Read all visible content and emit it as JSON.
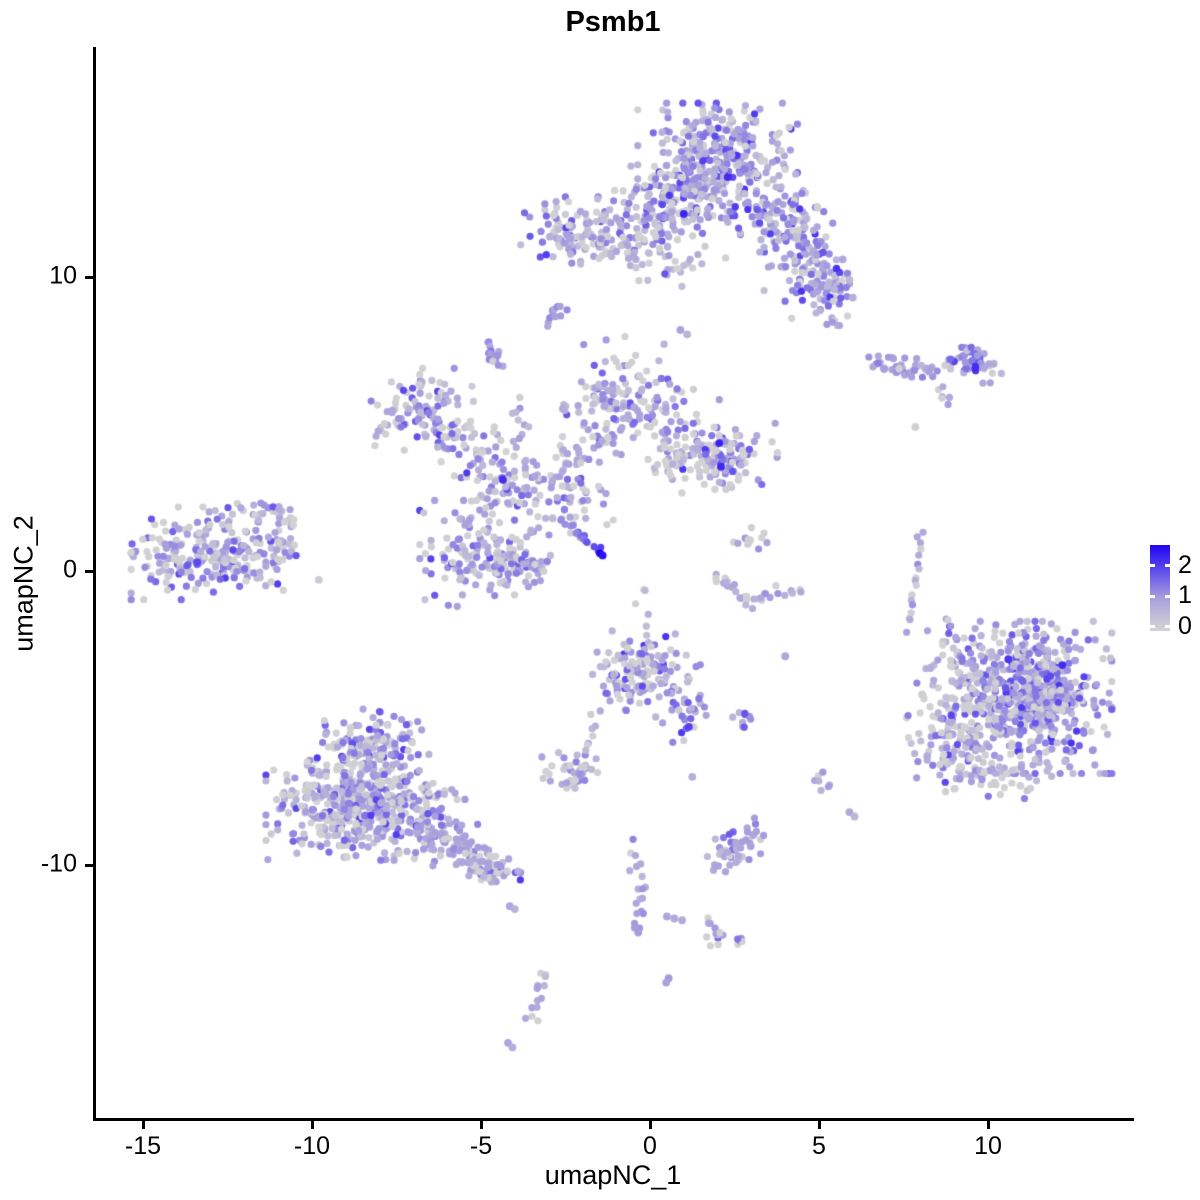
{
  "title": "Psmb1",
  "axes": {
    "x": {
      "label": "umapNC_1",
      "ticks": [
        -15,
        -10,
        -5,
        0,
        5,
        10
      ]
    },
    "y": {
      "label": "umapNC_2",
      "ticks": [
        10,
        0,
        -10
      ]
    }
  },
  "legend": {
    "tick_values": [
      2,
      1,
      0
    ],
    "color_low": "#D3D3D3",
    "color_high": "#2204F2"
  },
  "chart_data": {
    "type": "scatter",
    "title": "Psmb1",
    "xlabel": "umapNC_1",
    "ylabel": "umapNC_2",
    "x_ticks": [
      -15,
      -10,
      -5,
      0,
      5,
      10
    ],
    "y_ticks": [
      10,
      0,
      -10
    ],
    "xlim": [
      -16.4,
      14.2
    ],
    "ylim": [
      -18.6,
      17.8
    ],
    "grid": false,
    "legend_position": "right",
    "point_radius": 3.6,
    "value_max": 2.6,
    "color_stops": [
      [
        0,
        "#D3D3D3"
      ],
      [
        0.38,
        "#A89FDD"
      ],
      [
        0.77,
        "#5340EE"
      ],
      [
        1,
        "#2204F2"
      ]
    ],
    "clusters": [
      {
        "id": "top-core",
        "cx": 2.0,
        "cy": 14.0,
        "sx": 1.05,
        "sy": 0.85,
        "n": 320,
        "mean": 1.0,
        "sd": 0.5,
        "gray": 0.12
      },
      {
        "id": "top-lower",
        "cx": 1.0,
        "cy": 12.7,
        "sx": 1.15,
        "sy": 0.5,
        "n": 120,
        "mean": 0.95,
        "sd": 0.5,
        "gray": 0.15
      },
      {
        "id": "top-left-lobe",
        "cx": 0.15,
        "cy": 11.5,
        "sx": 0.7,
        "sy": 0.55,
        "n": 85,
        "mean": 0.9,
        "sd": 0.5,
        "gray": 0.18
      },
      {
        "id": "top-left-island",
        "cx": -2.4,
        "cy": 11.6,
        "sx": 0.68,
        "sy": 0.5,
        "n": 90,
        "mean": 0.9,
        "sd": 0.5,
        "gray": 0.18
      },
      {
        "id": "top-bridge",
        "cx": -1.2,
        "cy": 10.9,
        "sx": 0.45,
        "sy": 0.4,
        "n": 22,
        "mean": 0.75,
        "sd": 0.45,
        "gray": 0.2
      },
      {
        "id": "arm-1",
        "cx": 3.6,
        "cy": 12.2,
        "sx": 0.6,
        "sy": 0.6,
        "n": 85,
        "mean": 1.0,
        "sd": 0.5,
        "gray": 0.1
      },
      {
        "id": "arm-2",
        "cx": 4.5,
        "cy": 11.0,
        "sx": 0.5,
        "sy": 0.65,
        "n": 70,
        "mean": 0.95,
        "sd": 0.5,
        "gray": 0.12
      },
      {
        "id": "arm-3",
        "cx": 5.0,
        "cy": 9.8,
        "sx": 0.45,
        "sy": 0.55,
        "n": 55,
        "mean": 1.0,
        "sd": 0.5,
        "gray": 0.1
      },
      {
        "id": "arm-4",
        "cx": 5.55,
        "cy": 8.95,
        "sx": 0.3,
        "sy": 0.45,
        "n": 25,
        "mean": 0.95,
        "sd": 0.5,
        "gray": 0.1
      },
      {
        "id": "top-sparse-below",
        "cx": 0.6,
        "cy": 10.3,
        "sx": 0.9,
        "sy": 0.5,
        "n": 24,
        "mean": 0.75,
        "sd": 0.45,
        "gray": 0.25
      },
      {
        "id": "upper-mid-sparse",
        "cx": -0.5,
        "cy": 7.5,
        "sx": 0.75,
        "sy": 0.5,
        "n": 12,
        "mean": 0.8,
        "sd": 0.45,
        "gray": 0.2
      },
      {
        "id": "mid-left",
        "cx": -6.8,
        "cy": 5.5,
        "sx": 0.7,
        "sy": 0.62,
        "n": 100,
        "mean": 0.95,
        "sd": 0.5,
        "gray": 0.18
      },
      {
        "id": "mid-left-elbow",
        "cx": -5.4,
        "cy": 4.3,
        "sx": 0.55,
        "sy": 0.5,
        "n": 45,
        "mean": 0.85,
        "sd": 0.5,
        "gray": 0.25
      },
      {
        "id": "mid-upper",
        "cx": -0.9,
        "cy": 5.6,
        "sx": 0.75,
        "sy": 0.62,
        "n": 110,
        "mean": 0.9,
        "sd": 0.5,
        "gray": 0.22
      },
      {
        "id": "mid-upper-right-sparse",
        "cx": 0.7,
        "cy": 5.2,
        "sx": 0.6,
        "sy": 0.7,
        "n": 30,
        "mean": 0.75,
        "sd": 0.45,
        "gray": 0.3
      },
      {
        "id": "mid-right-lobe",
        "cx": 2.1,
        "cy": 3.9,
        "sx": 0.75,
        "sy": 0.5,
        "n": 120,
        "mean": 0.95,
        "sd": 0.5,
        "gray": 0.25
      },
      {
        "id": "mid-right-gray-band",
        "cx": 0.7,
        "cy": 3.6,
        "sx": 0.6,
        "sy": 0.42,
        "n": 30,
        "mean": 0.55,
        "sd": 0.4,
        "gray": 0.4
      },
      {
        "id": "center-scatter",
        "cx": -2.2,
        "cy": 2.5,
        "sx": 0.7,
        "sy": 0.6,
        "n": 45,
        "mean": 0.75,
        "sd": 0.45,
        "gray": 0.3
      },
      {
        "id": "ring-top",
        "cx": -4.4,
        "cy": 2.95,
        "sx": 0.5,
        "sy": 0.45,
        "n": 55,
        "mean": 0.95,
        "sd": 0.5,
        "gray": 0.15
      },
      {
        "id": "ring-main",
        "cx": -4.9,
        "cy": 0.6,
        "sx": 0.85,
        "sy": 0.8,
        "n": 150,
        "mean": 0.85,
        "sd": 0.5,
        "gray": 0.25
      },
      {
        "id": "ring-right",
        "cx": -3.6,
        "cy": 0.3,
        "sx": 0.4,
        "sy": 0.5,
        "n": 35,
        "mean": 0.8,
        "sd": 0.45,
        "gray": 0.25
      },
      {
        "id": "far-left-main",
        "cx": -13.1,
        "cy": 0.6,
        "sx": 1.0,
        "sy": 0.7,
        "n": 230,
        "mean": 0.9,
        "sd": 0.5,
        "gray": 0.22
      },
      {
        "id": "far-left-arm",
        "cx": -11.4,
        "cy": 1.85,
        "sx": 0.55,
        "sy": 0.33,
        "n": 30,
        "mean": 0.85,
        "sd": 0.45,
        "gray": 0.2
      },
      {
        "id": "far-left-edge",
        "cx": -10.75,
        "cy": 0.9,
        "sx": 0.4,
        "sy": 0.5,
        "n": 22,
        "mean": 0.75,
        "sd": 0.45,
        "gray": 0.3
      },
      {
        "id": "arc-top",
        "cx": 2.9,
        "cy": 1.05,
        "sx": 0.3,
        "sy": 0.35,
        "n": 13,
        "mean": 0.75,
        "sd": 0.45,
        "gray": 0.3
      },
      {
        "id": "bottom-center",
        "cx": -0.2,
        "cy": -3.5,
        "sx": 0.75,
        "sy": 0.65,
        "n": 150,
        "mean": 1.0,
        "sd": 0.5,
        "gray": 0.18
      },
      {
        "id": "bottom-center-neck",
        "cx": 1.05,
        "cy": -4.9,
        "sx": 0.3,
        "sy": 0.5,
        "n": 25,
        "mean": 0.95,
        "sd": 0.5,
        "gray": 0.15
      },
      {
        "id": "tiny-right-of-neck",
        "cx": 2.75,
        "cy": -5.05,
        "sx": 0.18,
        "sy": 0.13,
        "n": 9,
        "mean": 1.2,
        "sd": 0.5,
        "gray": 0.05
      },
      {
        "id": "right-big-core",
        "cx": 11.3,
        "cy": -4.3,
        "sx": 1.05,
        "sy": 1.15,
        "n": 580,
        "mean": 1.0,
        "sd": 0.5,
        "gray": 0.1
      },
      {
        "id": "right-big-left-fringe",
        "cx": 9.1,
        "cy": -5.3,
        "sx": 0.7,
        "sy": 1.05,
        "n": 140,
        "mean": 0.8,
        "sd": 0.5,
        "gray": 0.3
      },
      {
        "id": "right-big-topleft",
        "cx": 9.4,
        "cy": -2.7,
        "sx": 0.55,
        "sy": 0.6,
        "n": 45,
        "mean": 0.85,
        "sd": 0.5,
        "gray": 0.2
      },
      {
        "id": "right-big-bottom",
        "cx": 10.6,
        "cy": -6.95,
        "sx": 0.9,
        "sy": 0.35,
        "n": 50,
        "mean": 0.65,
        "sd": 0.45,
        "gray": 0.35
      },
      {
        "id": "bottom-left-toplobe",
        "cx": -8.2,
        "cy": -5.9,
        "sx": 0.75,
        "sy": 0.6,
        "n": 130,
        "mean": 0.9,
        "sd": 0.5,
        "gray": 0.18
      },
      {
        "id": "bottom-left-main",
        "cx": -9.0,
        "cy": -7.9,
        "sx": 1.05,
        "sy": 0.85,
        "n": 380,
        "mean": 0.9,
        "sd": 0.5,
        "gray": 0.2
      },
      {
        "id": "bottom-left-right",
        "cx": -6.9,
        "cy": -8.3,
        "sx": 0.8,
        "sy": 0.7,
        "n": 150,
        "mean": 0.9,
        "sd": 0.5,
        "gray": 0.2
      },
      {
        "id": "tail-knot",
        "cx": -4.5,
        "cy": -10.2,
        "sx": 0.3,
        "sy": 0.22,
        "n": 30,
        "mean": 0.95,
        "sd": 0.5,
        "gray": 0.12
      },
      {
        "id": "small-island-left",
        "cx": -2.3,
        "cy": -6.85,
        "sx": 0.4,
        "sy": 0.3,
        "n": 42,
        "mean": 0.9,
        "sd": 0.5,
        "gray": 0.2
      },
      {
        "id": "tiny-island",
        "cx": 4.95,
        "cy": -7.2,
        "sx": 0.16,
        "sy": 0.18,
        "n": 7,
        "mean": 0.9,
        "sd": 0.4,
        "gray": 0.15
      },
      {
        "id": "right-band-knot",
        "cx": 9.45,
        "cy": 7.0,
        "sx": 0.42,
        "sy": 0.27,
        "n": 55,
        "mean": 1.05,
        "sd": 0.5,
        "gray": 0.08
      },
      {
        "id": "y-island",
        "cx": 2.3,
        "cy": -12.5,
        "sx": 0.35,
        "sy": 0.25,
        "n": 13,
        "mean": 1.0,
        "sd": 0.5,
        "gray": 0.15
      },
      {
        "id": "w-knot",
        "cx": 2.5,
        "cy": -9.55,
        "sx": 0.35,
        "sy": 0.3,
        "n": 18,
        "mean": 0.95,
        "sd": 0.5,
        "gray": 0.15
      }
    ],
    "lines": [
      {
        "id": "dark-streak",
        "x1": -2.75,
        "y1": 1.85,
        "x2": -1.52,
        "y2": 0.68,
        "n": 16,
        "spread": 0.07,
        "v1": 0.6,
        "v2": 2.1,
        "gray": 0
      },
      {
        "id": "vert-strip-right",
        "x1": 8.05,
        "y1": 1.4,
        "x2": 7.7,
        "y2": -2.0,
        "n": 17,
        "spread": 0.08,
        "v1": 0.8,
        "v2": 0.9,
        "gray": 0.12
      },
      {
        "id": "right-band-chain",
        "x1": 6.55,
        "y1": 7.05,
        "x2": 8.35,
        "y2": 6.85,
        "n": 42,
        "spread": 0.14,
        "v1": 0.9,
        "v2": 0.95,
        "gray": 0.12
      },
      {
        "id": "right-band-mini",
        "x1": 8.5,
        "y1": 6.2,
        "x2": 8.95,
        "y2": 5.75,
        "n": 6,
        "spread": 0.08,
        "v1": 0.9,
        "v2": 0.9,
        "gray": 0.15
      },
      {
        "id": "bottom-left-tail",
        "x1": -6.35,
        "y1": -9.05,
        "x2": -4.55,
        "y2": -10.15,
        "n": 95,
        "spread": 0.3,
        "v1": 0.85,
        "v2": 0.9,
        "gray": 0.2
      },
      {
        "id": "island-chain",
        "x1": -1.5,
        "y1": -4.7,
        "x2": -2.0,
        "y2": -6.35,
        "n": 9,
        "spread": 0.12,
        "v1": 0.7,
        "v2": 0.7,
        "gray": 0.25
      },
      {
        "id": "lower-chain-a",
        "x1": -0.55,
        "y1": -9.35,
        "x2": -0.2,
        "y2": -11.15,
        "n": 11,
        "spread": 0.1,
        "v1": 0.85,
        "v2": 0.85,
        "gray": 0.15
      },
      {
        "id": "lower-chain-b",
        "x1": -0.2,
        "y1": -11.15,
        "x2": -0.45,
        "y2": -12.2,
        "n": 8,
        "spread": 0.09,
        "v1": 0.9,
        "v2": 1.0,
        "gray": 0.1
      },
      {
        "id": "z-chain",
        "x1": -3.15,
        "y1": -13.65,
        "x2": -3.55,
        "y2": -15.25,
        "n": 13,
        "spread": 0.13,
        "v1": 0.8,
        "v2": 0.8,
        "gray": 0.25
      },
      {
        "id": "small-blob-a",
        "x1": -4.8,
        "y1": 7.75,
        "x2": -4.45,
        "y2": 7.05,
        "n": 14,
        "spread": 0.13,
        "v1": 1.1,
        "v2": 1.1,
        "gray": 0.05
      },
      {
        "id": "small-blob-b",
        "x1": -3.1,
        "y1": 8.5,
        "x2": -2.6,
        "y2": 9.0,
        "n": 11,
        "spread": 0.11,
        "v1": 1.05,
        "v2": 1.05,
        "gray": 0.05
      },
      {
        "id": "mid-left-updown-chain",
        "x1": -3.9,
        "y1": 5.9,
        "x2": -3.82,
        "y2": 3.75,
        "n": 13,
        "spread": 0.12,
        "v1": 0.75,
        "v2": 0.75,
        "gray": 0.2
      },
      {
        "id": "arc-left",
        "x1": 1.95,
        "y1": -0.15,
        "x2": 2.85,
        "y2": -1.0,
        "n": 16,
        "spread": 0.13,
        "v1": 0.7,
        "v2": 0.7,
        "gray": 0.3
      },
      {
        "id": "arc-right",
        "x1": 2.85,
        "y1": -1.0,
        "x2": 4.35,
        "y2": -0.62,
        "n": 16,
        "spread": 0.13,
        "v1": 0.7,
        "v2": 0.7,
        "gray": 0.3
      },
      {
        "id": "diag-band",
        "x1": -3.5,
        "y1": 3.2,
        "x2": -1.05,
        "y2": 4.55,
        "n": 42,
        "spread": 0.3,
        "v1": 0.75,
        "v2": 0.8,
        "gray": 0.28
      },
      {
        "id": "w-line",
        "x1": 1.95,
        "y1": -10.15,
        "x2": 3.3,
        "y2": -8.7,
        "n": 30,
        "spread": 0.28,
        "v1": 0.85,
        "v2": 0.9,
        "gray": 0.18
      },
      {
        "id": "y-approach",
        "x1": 1.6,
        "y1": -11.9,
        "x2": 2.0,
        "y2": -12.35,
        "n": 6,
        "spread": 0.08,
        "v1": 0.9,
        "v2": 0.9,
        "gray": 0.1
      },
      {
        "id": "mid-vert-sparse",
        "x1": -0.25,
        "y1": -0.5,
        "x2": -0.15,
        "y2": -2.2,
        "n": 6,
        "spread": 0.1,
        "v1": 0.5,
        "v2": 0.5,
        "gray": 0.3
      }
    ],
    "points": [
      [
        -1.48,
        0.6,
        2.6
      ],
      [
        -1.4,
        0.53,
        2.45
      ],
      [
        2.05,
        4.35,
        2.3
      ],
      [
        2.1,
        3.55,
        2.25
      ],
      [
        9.62,
        6.88,
        2.2
      ],
      [
        -4.35,
        3.1,
        2.2
      ],
      [
        1.15,
        -5.3,
        2.0
      ],
      [
        12.2,
        -3.2,
        2.2
      ],
      [
        10.6,
        -3.0,
        2.1
      ],
      [
        1.0,
        12.15,
        2.3
      ],
      [
        2.3,
        13.4,
        2.2
      ],
      [
        -13.4,
        0.3,
        1.9
      ],
      [
        7.85,
        4.9,
        0.05
      ],
      [
        4.0,
        -2.9,
        0.85
      ],
      [
        5.9,
        -8.2,
        0.8
      ],
      [
        6.05,
        -8.35,
        0.55
      ],
      [
        1.25,
        -7.0,
        0.7
      ],
      [
        0.5,
        -11.75,
        0.85
      ],
      [
        0.72,
        -11.82,
        0.8
      ],
      [
        0.95,
        -11.88,
        0.75
      ],
      [
        0.55,
        -13.85,
        1.05
      ],
      [
        0.48,
        -14.0,
        0.95
      ],
      [
        -4.2,
        -16.05,
        0.9
      ],
      [
        -4.07,
        -16.2,
        0.7
      ],
      [
        -4.15,
        -11.4,
        0.85
      ],
      [
        -4.0,
        -11.5,
        0.6
      ],
      [
        -1.35,
        5.6,
        0.8
      ],
      [
        0.9,
        8.2,
        0.9
      ],
      [
        1.1,
        8.05,
        0.6
      ],
      [
        8.3,
        -3.3,
        0.7
      ],
      [
        8.05,
        -4.2,
        0.1
      ],
      [
        8.2,
        -6.3,
        0.75
      ],
      [
        -0.35,
        -12.3,
        1.0
      ],
      [
        5.7,
        10.6,
        0.8
      ],
      [
        5.9,
        9.9,
        0.5
      ],
      [
        6.0,
        9.3,
        0.7
      ],
      [
        -9.8,
        -0.3,
        0.15
      ]
    ]
  }
}
